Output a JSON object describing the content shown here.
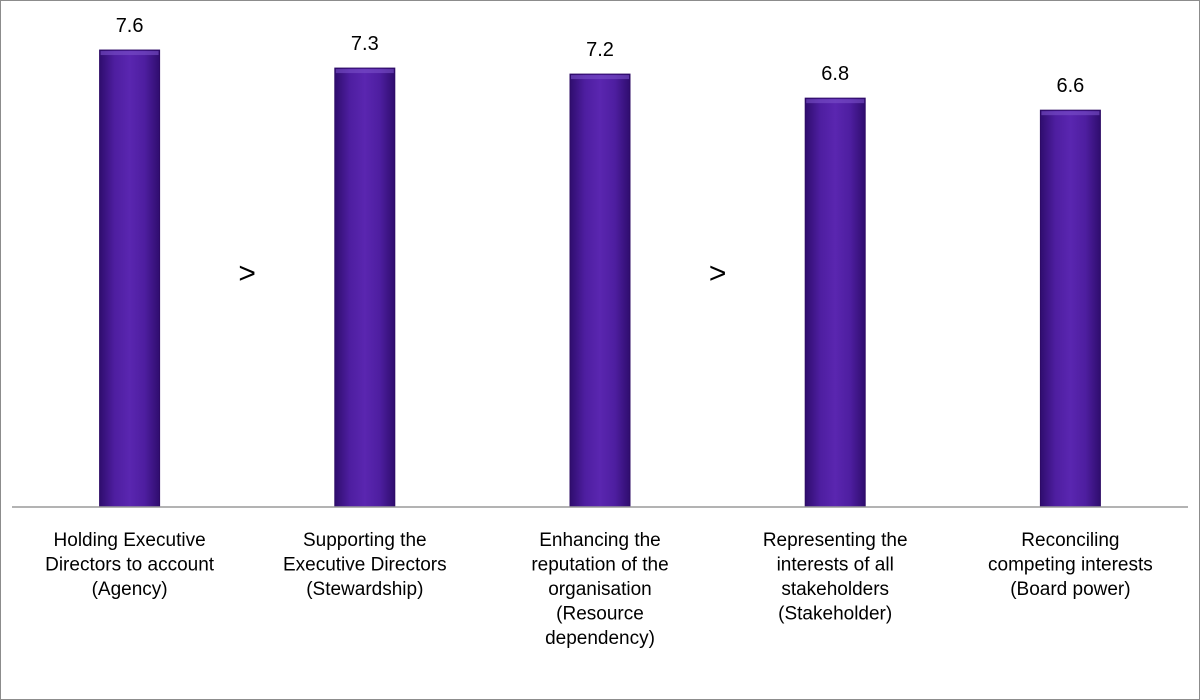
{
  "chart_data": {
    "type": "bar",
    "title": "",
    "xlabel": "",
    "ylabel": "",
    "ylim": [
      0,
      8
    ],
    "grid": false,
    "legend": "none",
    "categories": [
      [
        "Holding Executive",
        "Directors to account",
        "(Agency)"
      ],
      [
        "Supporting the",
        "Executive Directors",
        "(Stewardship)"
      ],
      [
        "Enhancing the",
        "reputation of the",
        "organisation",
        "(Resource",
        "dependency)"
      ],
      [
        "Representing the",
        "interests of all",
        "stakeholders",
        "(Stakeholder)"
      ],
      [
        "Reconciling",
        "competing interests",
        "(Board power)"
      ]
    ],
    "values": [
      7.6,
      7.3,
      7.2,
      6.8,
      6.6
    ],
    "data_labels": [
      "7.6",
      "7.3",
      "7.2",
      "6.8",
      "6.6"
    ],
    "bar_color": "#4b1a9a",
    "bar_edge_color": "#2e0b66",
    "separators": [
      {
        "after_index": 0,
        "symbol": ">"
      },
      {
        "after_index": 2,
        "symbol": ">"
      }
    ]
  }
}
